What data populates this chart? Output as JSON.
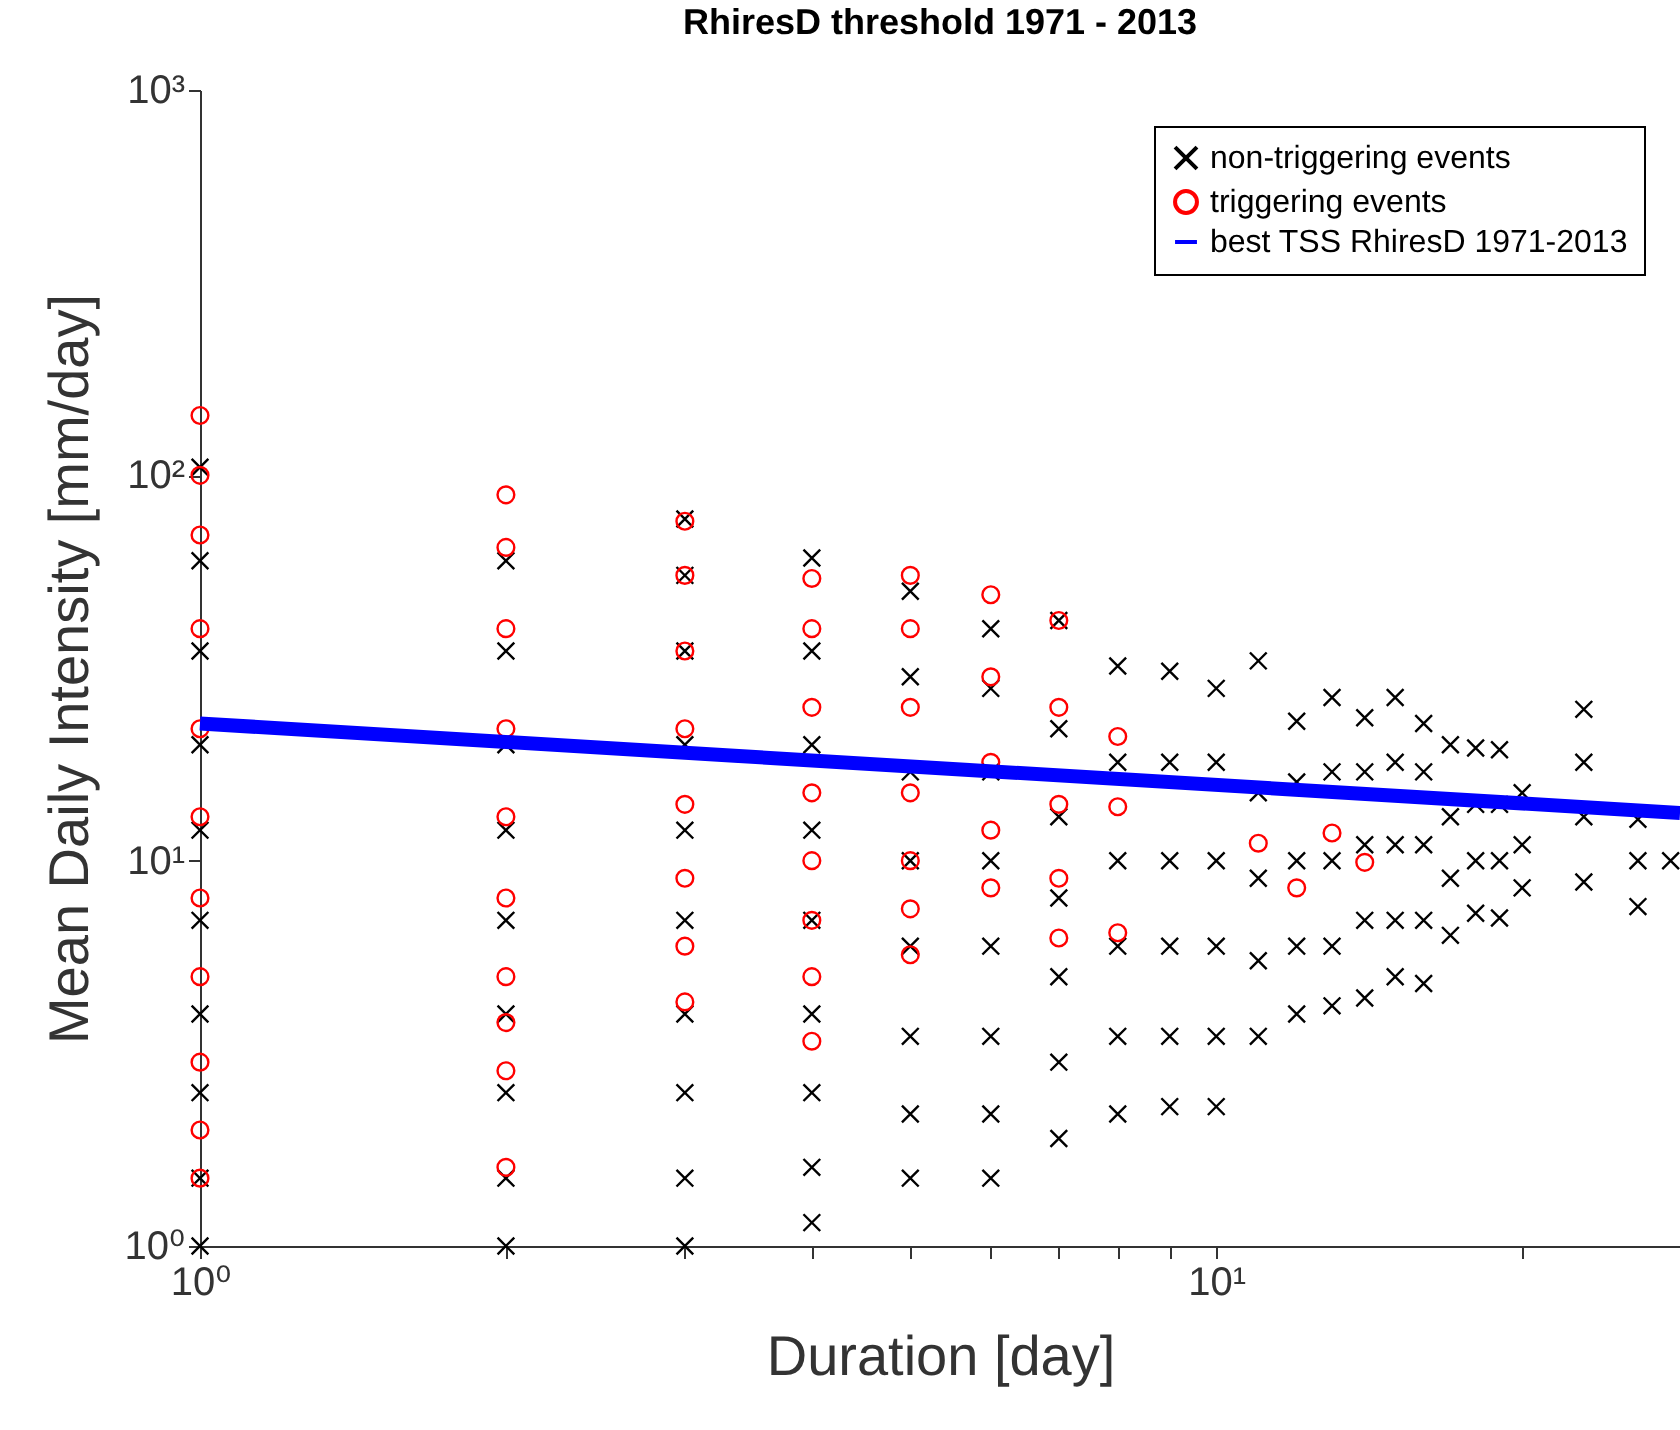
{
  "chart_data": {
    "type": "scatter",
    "title": "RhiresD threshold 1971 - 2013",
    "xlabel": "Duration [day]",
    "ylabel": "Mean Daily Intensity [mm/day]",
    "log": "xy",
    "grid": false,
    "legend": "top right",
    "xlim": [
      1,
      28.6
    ],
    "ylim": [
      1,
      1000
    ],
    "xticks": [
      {
        "value": 1,
        "label": "10⁰"
      },
      {
        "value": 2,
        "label": null
      },
      {
        "value": 3,
        "label": null
      },
      {
        "value": 4,
        "label": null
      },
      {
        "value": 5,
        "label": null
      },
      {
        "value": 6,
        "label": null
      },
      {
        "value": 7,
        "label": null
      },
      {
        "value": 8,
        "label": null
      },
      {
        "value": 9,
        "label": null
      },
      {
        "value": 10,
        "label": "10¹"
      },
      {
        "value": 20,
        "label": null
      }
    ],
    "yticks": [
      {
        "value": 1,
        "label": "10⁰"
      },
      {
        "value": 10,
        "label": "10¹"
      },
      {
        "value": 100,
        "label": "10²"
      },
      {
        "value": 1000,
        "label": "10³"
      }
    ],
    "series": [
      {
        "name": "non-triggering events",
        "type": "scatter",
        "marker": "cross",
        "color": "#000000",
        "x": [
          1,
          1,
          1,
          1,
          1,
          1,
          1,
          1,
          1,
          1,
          2,
          2,
          2,
          2,
          2,
          2,
          2,
          2,
          2,
          3,
          3,
          3,
          3,
          3,
          3,
          3,
          3,
          3,
          3,
          4,
          4,
          4,
          4,
          4,
          4,
          4,
          4,
          4,
          5,
          5,
          5,
          5,
          5,
          5,
          5,
          5,
          6,
          6,
          6,
          6,
          6,
          6,
          6,
          6,
          7,
          7,
          7,
          7,
          7,
          7,
          7,
          8,
          8,
          8,
          8,
          8,
          8,
          9,
          9,
          9,
          9,
          9,
          9,
          10,
          10,
          10,
          10,
          10,
          10,
          11,
          11,
          11,
          11,
          11,
          12,
          12,
          12,
          12,
          12,
          13,
          13,
          13,
          13,
          13,
          14,
          14,
          14,
          14,
          14,
          15,
          15,
          15,
          15,
          15,
          16,
          16,
          16,
          16,
          16,
          17,
          17,
          17,
          17,
          18,
          18,
          18,
          18,
          19,
          19,
          19,
          19,
          20,
          20,
          20,
          23,
          23,
          23,
          23,
          26,
          26,
          26,
          28
        ],
        "values": [
          1.0,
          1.5,
          2.5,
          4,
          7,
          12,
          20,
          35,
          60,
          105,
          1.0,
          1.5,
          2.5,
          4,
          7,
          12,
          20,
          35,
          60,
          1.0,
          1.5,
          2.5,
          4,
          7,
          12,
          20,
          35,
          55,
          77,
          1.15,
          1.6,
          2.5,
          4,
          7,
          12,
          20,
          35,
          61,
          1.5,
          2.2,
          3.5,
          6,
          10,
          17,
          30,
          50,
          1.5,
          2.2,
          3.5,
          6,
          10,
          17,
          28,
          40,
          1.9,
          3,
          5,
          8,
          13,
          22,
          42,
          2.2,
          3.5,
          6,
          10,
          18,
          32,
          2.3,
          3.5,
          6,
          10,
          18,
          31,
          2.3,
          3.5,
          6,
          10,
          18,
          28,
          3.5,
          5.5,
          9,
          15,
          33,
          4.0,
          6,
          10,
          16,
          23,
          4.2,
          6,
          10,
          17,
          26.5,
          4.4,
          7,
          11,
          17,
          23.5,
          5.0,
          7,
          11,
          18,
          26.5,
          4.8,
          7,
          11,
          17,
          22.7,
          6.4,
          9,
          13,
          20,
          7.3,
          10,
          14,
          19.6,
          7.1,
          10,
          14,
          19.4,
          8.5,
          11,
          15,
          8.8,
          13,
          18,
          24.7,
          7.6,
          10,
          12.8,
          10
        ]
      },
      {
        "name": "triggering events",
        "type": "scatter",
        "marker": "circle",
        "color": "#ff0000",
        "x": [
          1,
          1,
          1,
          1,
          1,
          1,
          1,
          1,
          1,
          1,
          1,
          2,
          2,
          2,
          2,
          2,
          2,
          2,
          2,
          2,
          2,
          3,
          3,
          3,
          3,
          3,
          3,
          3,
          3,
          4,
          4,
          4,
          4,
          4,
          4,
          4,
          4,
          5,
          5,
          5,
          5,
          5,
          5,
          5,
          6,
          6,
          6,
          6,
          6,
          7,
          7,
          7,
          7,
          7,
          8,
          8,
          8,
          11,
          12,
          13,
          14
        ],
        "values": [
          1.5,
          2,
          3,
          5,
          8,
          13,
          22,
          40,
          70,
          100,
          143,
          1.6,
          2.85,
          3.8,
          5,
          8,
          13,
          22,
          40,
          65,
          89,
          4.3,
          6,
          9,
          14,
          22,
          35,
          55,
          76,
          3.4,
          5.0,
          7,
          10,
          15,
          25,
          40,
          54,
          5.7,
          7.5,
          10,
          15,
          25,
          40,
          55,
          8.5,
          12,
          18,
          30,
          49,
          6.3,
          9,
          14,
          25,
          42,
          6.5,
          13.8,
          21,
          11.1,
          8.5,
          11.8,
          9.9
        ]
      },
      {
        "name": "best TSS RhiresD 1971-2013",
        "type": "line",
        "color": "#0000ff",
        "x": [
          1,
          28.6
        ],
        "values": [
          22.7,
          13.3
        ]
      }
    ]
  }
}
